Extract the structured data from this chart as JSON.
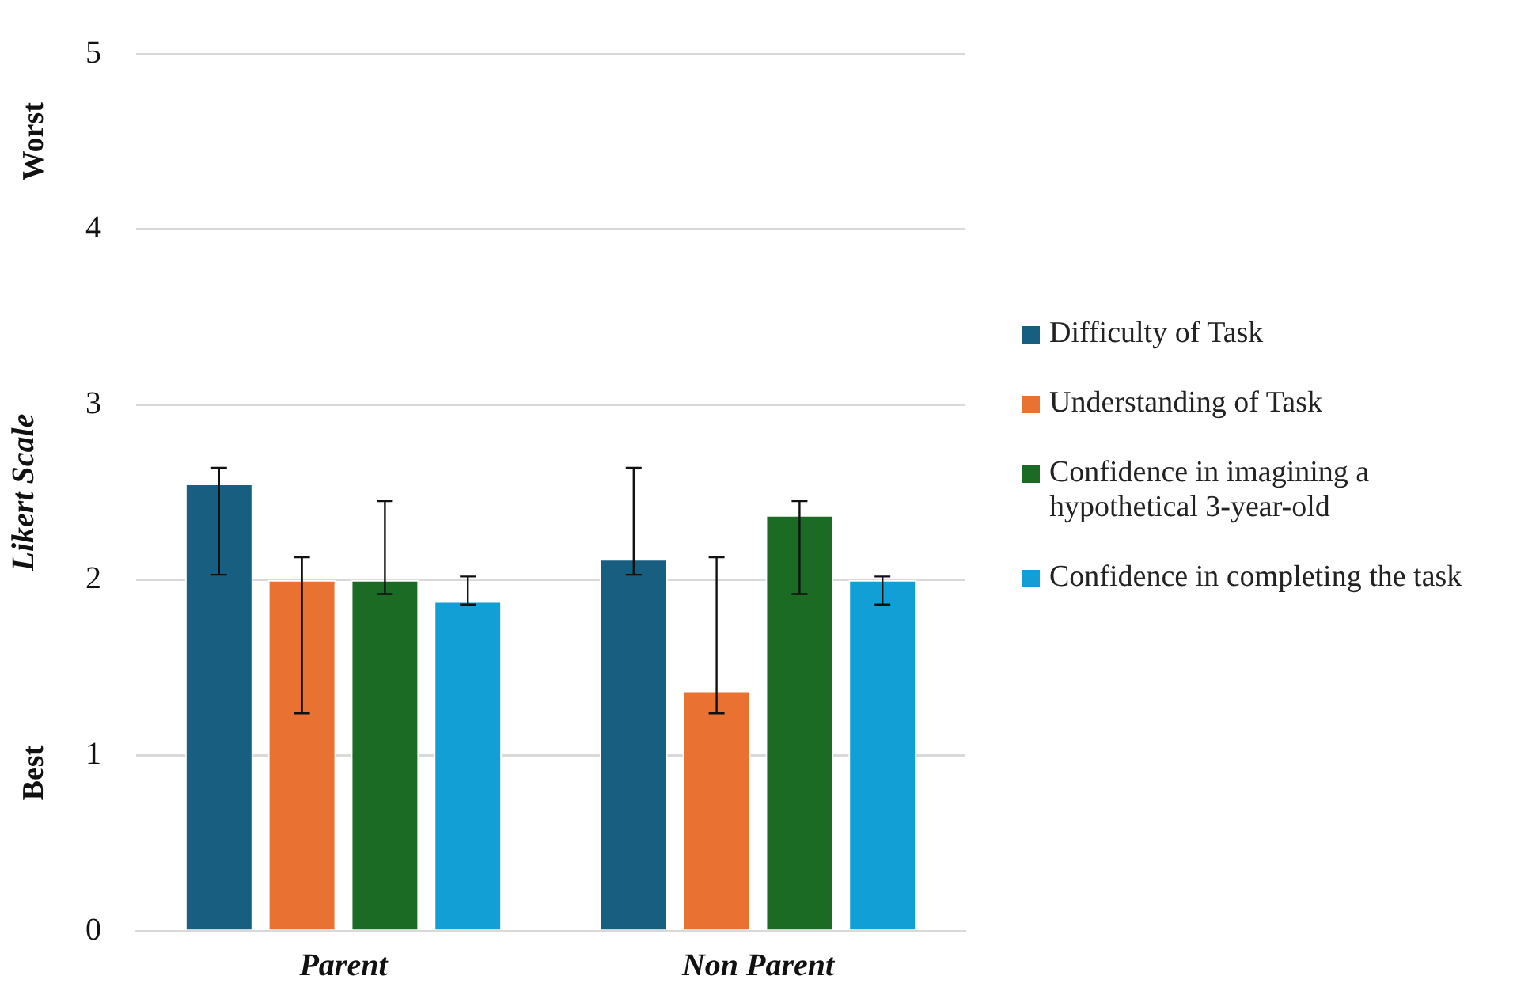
{
  "chart_data": {
    "type": "bar",
    "ylabel": "Likert Scale",
    "categories": [
      "Parent",
      "Non Parent"
    ],
    "series": [
      {
        "name": "Difficulty of Task",
        "color": "#175e80",
        "values": [
          2.55,
          2.12
        ],
        "errors": [
          [
            2.03,
            2.64
          ],
          [
            2.03,
            2.64
          ]
        ]
      },
      {
        "name": "Understanding of Task",
        "color": "#e97132",
        "values": [
          2.0,
          1.37
        ],
        "errors": [
          [
            1.24,
            2.13
          ],
          [
            1.24,
            2.13
          ]
        ]
      },
      {
        "name": "Confidence in imagining a hypothetical 3-year-old",
        "color": "#1b6b25",
        "values": [
          2.0,
          2.37
        ],
        "errors": [
          [
            1.92,
            2.45
          ],
          [
            1.92,
            2.45
          ]
        ]
      },
      {
        "name": "Confidence in completing the task",
        "color": "#119fd6",
        "values": [
          1.88,
          2.0
        ],
        "errors": [
          [
            1.86,
            2.02
          ],
          [
            1.86,
            2.02
          ]
        ]
      }
    ],
    "ylim": [
      0,
      5
    ],
    "yticks": [
      0,
      1,
      2,
      3,
      4,
      5
    ],
    "grid": "y",
    "legend": "right",
    "annotations": [
      "Worst",
      "Best"
    ]
  }
}
